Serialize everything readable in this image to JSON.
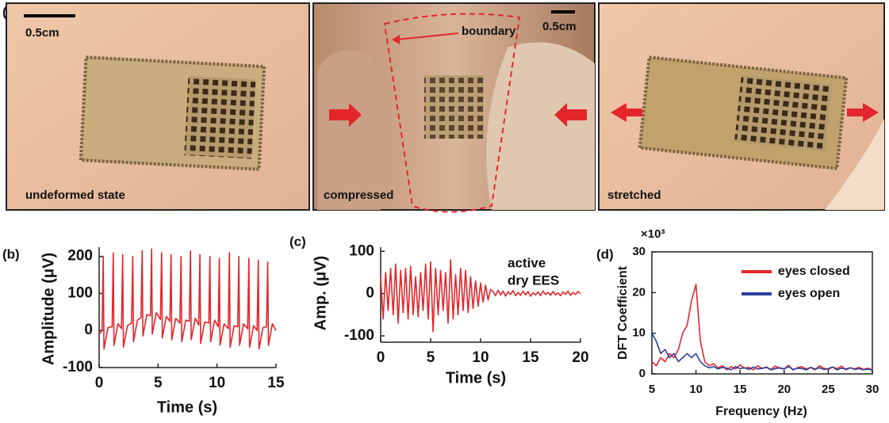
{
  "panel_labels": [
    "(a)",
    "(b)",
    "(c)",
    "(d)"
  ],
  "photos": [
    {
      "label": "undeformed state",
      "scale_bar": "0.5cm"
    },
    {
      "label": "compressed",
      "scale_bar": "0.5cm",
      "annotation": "boundary"
    },
    {
      "label": "stretched"
    }
  ],
  "chart_data": [
    {
      "type": "line",
      "y_label": "Amplitude (μV)",
      "x_label": "Time (s)",
      "xlim": [
        0,
        15
      ],
      "ylim": [
        -100,
        225
      ],
      "xticks": [
        0,
        5,
        10,
        15
      ],
      "yticks": [
        -100,
        0,
        100,
        200
      ],
      "x": [
        0,
        0.25,
        0.35,
        0.41,
        0.75,
        1.1,
        1.2,
        1.26,
        1.6,
        1.9,
        2.0,
        2.06,
        2.4,
        2.75,
        2.85,
        2.91,
        3.25,
        3.55,
        3.65,
        3.71,
        4.05,
        4.35,
        4.45,
        4.51,
        4.85,
        5.2,
        5.3,
        5.36,
        5.7,
        6.0,
        6.1,
        6.16,
        6.5,
        6.85,
        6.95,
        7.01,
        7.35,
        7.65,
        7.75,
        7.81,
        8.15,
        8.45,
        8.55,
        8.61,
        8.95,
        9.3,
        9.4,
        9.46,
        9.8,
        10.1,
        10.2,
        10.26,
        10.6,
        10.95,
        11.05,
        11.11,
        11.45,
        11.75,
        11.85,
        11.91,
        12.25,
        12.6,
        12.7,
        12.76,
        13.1,
        13.4,
        13.5,
        13.56,
        13.9,
        14.2,
        14.3,
        14.36,
        14.7,
        15
      ],
      "series": [
        {
          "color": "#e3262b",
          "values": [
            -10,
            0,
            200,
            -50,
            8,
            10,
            210,
            -40,
            18,
            5,
            205,
            -45,
            13,
            20,
            200,
            -30,
            28,
            35,
            215,
            -15,
            43,
            40,
            220,
            -10,
            48,
            30,
            210,
            -20,
            38,
            25,
            205,
            -25,
            33,
            20,
            200,
            -30,
            28,
            25,
            215,
            -25,
            33,
            15,
            205,
            -35,
            23,
            20,
            200,
            -30,
            28,
            10,
            195,
            -40,
            18,
            5,
            210,
            -45,
            13,
            10,
            200,
            -40,
            18,
            5,
            195,
            -45,
            13,
            0,
            190,
            -50,
            8,
            10,
            185,
            -40,
            18,
            0
          ]
        }
      ]
    },
    {
      "type": "line",
      "y_label": "Amp. (μV)",
      "x_label": "Time (s)",
      "annotations": [
        "active",
        "dry EES"
      ],
      "xlim": [
        0,
        20
      ],
      "ylim": [
        -115,
        110
      ],
      "xticks": [
        0,
        5,
        10,
        15,
        20
      ],
      "yticks": [
        -100,
        0,
        100
      ],
      "x": [
        0,
        0.25,
        0.5,
        0.75,
        1,
        1.25,
        1.5,
        1.75,
        2,
        2.25,
        2.5,
        2.75,
        3,
        3.25,
        3.5,
        3.75,
        4,
        4.25,
        4.5,
        4.75,
        5,
        5.25,
        5.5,
        5.75,
        6,
        6.25,
        6.5,
        6.75,
        7,
        7.25,
        7.5,
        7.75,
        8,
        8.25,
        8.5,
        8.75,
        9,
        9.25,
        9.5,
        9.75,
        10,
        10.25,
        10.5,
        10.75,
        11,
        11.25,
        11.5,
        11.75,
        12,
        12.25,
        12.5,
        12.75,
        13,
        13.25,
        13.5,
        13.75,
        14,
        14.25,
        14.5,
        14.75,
        15,
        15.25,
        15.5,
        15.75,
        16,
        16.25,
        16.5,
        16.75,
        17,
        17.25,
        17.5,
        17.75,
        18,
        18.25,
        18.5,
        18.75,
        19,
        19.25,
        19.5,
        19.75,
        20
      ],
      "series": [
        {
          "color": "#e3262b",
          "values": [
            40,
            -60,
            50,
            -40,
            60,
            -50,
            70,
            -70,
            55,
            -45,
            60,
            -60,
            65,
            -50,
            40,
            -55,
            50,
            -40,
            70,
            -60,
            75,
            -90,
            60,
            -50,
            55,
            -40,
            50,
            -70,
            80,
            -60,
            45,
            -50,
            60,
            -40,
            55,
            -45,
            40,
            -35,
            30,
            -30,
            25,
            -20,
            20,
            -15,
            10,
            5,
            -5,
            8,
            -3,
            6,
            -6,
            4,
            -2,
            7,
            -5,
            3,
            -4,
            6,
            -3,
            5,
            -6,
            2,
            -3,
            4,
            -5,
            6,
            -2,
            3,
            -4,
            5,
            -3,
            2,
            -5,
            4,
            -2,
            6,
            -4,
            3,
            -2,
            5,
            0
          ]
        }
      ]
    },
    {
      "type": "line",
      "y_label": "DFT Coefficient",
      "x_label": "Frequency (Hz)",
      "y_multiplier": "×10³",
      "xlim": [
        5,
        30
      ],
      "ylim": [
        0,
        30
      ],
      "xticks": [
        5,
        10,
        15,
        20,
        25,
        30
      ],
      "yticks": [
        0,
        10,
        20,
        30
      ],
      "legend": "upper right",
      "x": [
        5,
        5.5,
        6,
        6.5,
        7,
        7.5,
        8,
        8.5,
        9,
        9.5,
        10,
        10.5,
        11,
        11.5,
        12,
        12.5,
        13,
        13.5,
        14,
        14.5,
        15,
        15.5,
        16,
        16.5,
        17,
        17.5,
        18,
        18.5,
        19,
        19.5,
        20,
        20.5,
        21,
        21.5,
        22,
        22.5,
        23,
        23.5,
        24,
        24.5,
        25,
        25.5,
        26,
        26.5,
        27,
        27.5,
        28,
        28.5,
        29,
        29.5,
        30
      ],
      "series": [
        {
          "name": "eyes closed",
          "color": "#e3262b",
          "values": [
            3,
            2,
            4,
            3,
            5,
            4,
            6,
            10,
            12,
            18,
            22,
            8,
            3,
            2,
            2.5,
            1.5,
            2,
            1,
            1.8,
            1.2,
            2.2,
            1.4,
            1.6,
            1,
            2,
            1.3,
            1.7,
            1.1,
            1.9,
            1.4,
            1.2,
            2.1,
            1,
            1.5,
            1.8,
            1.2,
            1.6,
            1,
            2,
            1.4,
            1.1,
            1.7,
            1.3,
            1.9,
            1,
            1.5,
            1.2,
            1.6,
            1.1,
            1.4,
            1
          ]
        },
        {
          "name": "eyes open",
          "color": "#2b3f9a",
          "values": [
            10,
            8,
            5,
            6,
            4,
            5,
            3,
            4,
            5,
            4,
            5,
            3,
            2,
            1.5,
            1.8,
            1.2,
            1.6,
            1.4,
            1,
            1.8,
            1.3,
            1.5,
            1.1,
            1.7,
            1.2,
            1.4,
            1.6,
            1,
            1.3,
            1.5,
            1.2,
            1.8,
            1.1,
            1.4,
            1.3,
            1,
            1.6,
            1.2,
            1.5,
            1.1,
            1.3,
            1.7,
            1,
            1.4,
            1.2,
            1.5,
            1.1,
            1.3,
            1,
            1.2,
            0.9
          ]
        }
      ]
    }
  ]
}
